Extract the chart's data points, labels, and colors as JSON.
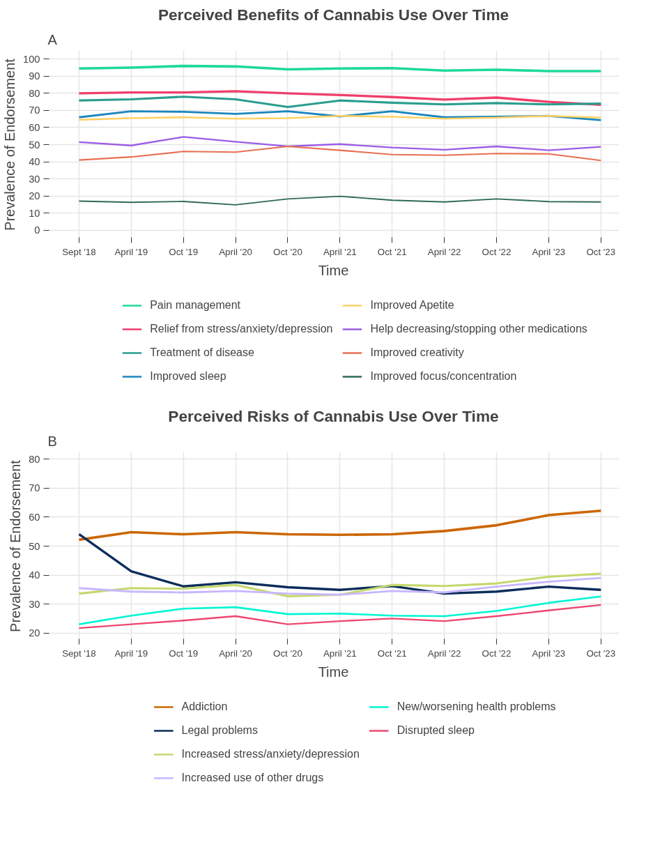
{
  "chart_data": [
    {
      "type": "line",
      "title": "Perceived Benefits of Cannabis Use Over Time",
      "xlabel": "Time",
      "ylabel": "Prevalence of Endorsement",
      "annotations": [
        "A"
      ],
      "grid": true,
      "legend": "bottom",
      "categories": [
        "Sept '18",
        "April '19",
        "Oct '19",
        "April '20",
        "Oct '20",
        "April '21",
        "Oct '21",
        "April '22",
        "Oct '22",
        "April '23",
        "Oct '23"
      ],
      "ylim": [
        -5,
        105
      ],
      "yticks": [
        0,
        10,
        20,
        30,
        40,
        50,
        60,
        70,
        80,
        90,
        100
      ],
      "series": [
        {
          "name": "Pain management",
          "color": "#1ed99b",
          "values": [
            94.5,
            95,
            96,
            95.7,
            94,
            94.5,
            94.7,
            93.3,
            93.8,
            93,
            93
          ]
        },
        {
          "name": "Relief from stress/anxiety/depression",
          "color": "#ef3f6b",
          "values": [
            80,
            80.5,
            80.5,
            81.2,
            80,
            79,
            77.8,
            76.3,
            77.5,
            75,
            73.3
          ]
        },
        {
          "name": "Treatment of disease",
          "color": "#2a9d8f",
          "values": [
            75.8,
            76.5,
            78,
            76.5,
            72,
            75.8,
            74.5,
            73.5,
            74.3,
            73.5,
            74
          ]
        },
        {
          "name": "Improved sleep",
          "color": "#1a86bd",
          "values": [
            66,
            69.5,
            69.2,
            68,
            69.5,
            66.5,
            69.5,
            66,
            66.3,
            66.8,
            64.3
          ]
        },
        {
          "name": "Improved Apetite",
          "color": "#ffd166",
          "values": [
            64.5,
            65.5,
            66,
            65.2,
            65.5,
            66.8,
            66.3,
            65.2,
            65.8,
            66.8,
            65.8
          ]
        },
        {
          "name": "Help decreasing/stopping other medications",
          "color": "#9b5de5",
          "values": [
            51.5,
            49.5,
            54.5,
            51.7,
            49,
            50.3,
            48.3,
            47,
            49,
            46.7,
            48.7
          ]
        },
        {
          "name": "Improved creativity",
          "color": "#e76f51",
          "values": [
            41,
            42.8,
            46,
            45.6,
            49,
            46.7,
            44.2,
            43.8,
            44.8,
            44.6,
            40.7
          ]
        },
        {
          "name": "Improved focus/concentration",
          "color": "#2d6a4f",
          "values": [
            17,
            16.3,
            16.8,
            14.8,
            18.3,
            19.8,
            17.5,
            16.5,
            18.3,
            16.7,
            16.5
          ]
        }
      ]
    },
    {
      "type": "line",
      "title": "Perceived Risks of Cannabis Use Over Time",
      "xlabel": "Time",
      "ylabel": "Prevalence of Endorsement",
      "annotations": [
        "B"
      ],
      "grid": true,
      "legend": "bottom",
      "categories": [
        "Sept '18",
        "April '19",
        "Oct '19",
        "April '20",
        "Oct '20",
        "April '21",
        "Oct '21",
        "April '22",
        "Oct '22",
        "April '23",
        "Oct '23"
      ],
      "ylim": [
        17.5,
        82.5
      ],
      "yticks": [
        20,
        30,
        40,
        50,
        60,
        70,
        80
      ],
      "series": [
        {
          "name": "Addiction",
          "color": "#cc6600",
          "values": [
            52.2,
            54.8,
            54.1,
            54.8,
            54.1,
            53.9,
            54.1,
            55.2,
            57.2,
            60.7,
            62.2
          ]
        },
        {
          "name": "Legal problems",
          "color": "#0b2d5a",
          "values": [
            54.1,
            41.3,
            36.1,
            37.5,
            35.8,
            34.9,
            36.2,
            33.6,
            34.3,
            36,
            34.9
          ]
        },
        {
          "name": "Increased stress/anxiety/depression",
          "color": "#c5d86d",
          "values": [
            33.6,
            35.5,
            35.3,
            36.6,
            32.7,
            33.2,
            36.6,
            36.2,
            37.1,
            39.4,
            40.5
          ]
        },
        {
          "name": "Increased use of other drugs",
          "color": "#c8b6ff",
          "values": [
            35.5,
            34.3,
            34,
            34.5,
            33.6,
            33.2,
            34.5,
            34,
            36,
            37.7,
            39
          ]
        },
        {
          "name": "New/worsening health problems",
          "color": "#00f5d4",
          "values": [
            23,
            26,
            28.4,
            28.9,
            26.5,
            26.7,
            26,
            25.8,
            27.6,
            30.4,
            32.6
          ]
        },
        {
          "name": "Disrupted sleep",
          "color": "#ef476f",
          "values": [
            21.7,
            23,
            24.3,
            25.8,
            23,
            24.1,
            25,
            24.1,
            25.8,
            27.8,
            29.7
          ]
        }
      ]
    }
  ]
}
